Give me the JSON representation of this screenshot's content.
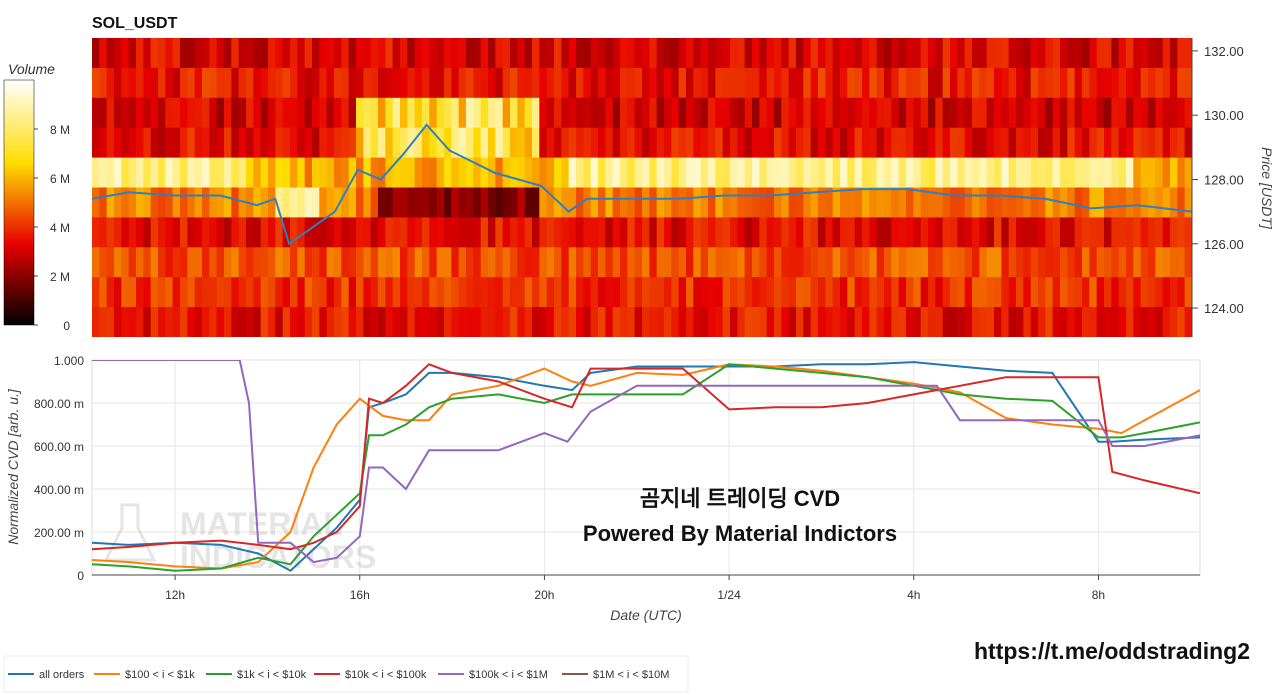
{
  "title": "SOL_USDT",
  "colorbar": {
    "label": "Volume",
    "ticks": [
      "0",
      "2 M",
      "4 M",
      "6 M",
      "8 M"
    ],
    "tick_values": [
      0,
      2,
      4,
      6,
      8
    ],
    "max": 10
  },
  "heatmap": {
    "price_axis_label": "Price [USDT]",
    "price_ticks": [
      "124.00",
      "126.00",
      "128.00",
      "130.00",
      "132.00"
    ],
    "price_tick_values": [
      124,
      126,
      128,
      130,
      132
    ],
    "price_range": [
      123.1,
      132.4
    ]
  },
  "cvd": {
    "y_label": "Normalized CVD [arb. u.]",
    "y_ticks": [
      "0",
      "200.00 m",
      "400.00 m",
      "600.00 m",
      "800.00 m",
      "1.000"
    ],
    "y_tick_values": [
      0,
      0.2,
      0.4,
      0.6,
      0.8,
      1.0
    ],
    "x_label": "Date (UTC)",
    "x_ticks": [
      "12h",
      "16h",
      "20h",
      "1/24",
      "4h",
      "8h"
    ],
    "x_tick_values": [
      12,
      16,
      20,
      24,
      28,
      32
    ],
    "x_range": [
      10.2,
      34.2
    ],
    "watermark": [
      "MATERIAL",
      "INDICATORS"
    ]
  },
  "overlay": {
    "line1": "곰지네 트레이딩 CVD",
    "line2": "Powered By Material Indictors"
  },
  "link": "https://t.me/oddstrading2",
  "legend": [
    {
      "name": "all orders",
      "color": "#1f77b4"
    },
    {
      "name": "$100 < i < $1k",
      "color": "#ff7f0e"
    },
    {
      "name": "$1k < i < $10k",
      "color": "#2ca02c"
    },
    {
      "name": "$10k < i < $100k",
      "color": "#d62728"
    },
    {
      "name": "$100k < i < $1M",
      "color": "#9467bd"
    },
    {
      "name": "$1M < i < $10M",
      "color": "#8c564b"
    }
  ],
  "chart_data": [
    {
      "type": "heatmap",
      "title": "SOL_USDT",
      "y_label": "Price [USDT]",
      "price_line": {
        "x": [
          10.2,
          11,
          12,
          13,
          13.8,
          14.2,
          14.5,
          15,
          15.5,
          16,
          16.5,
          17,
          17.5,
          18,
          19,
          20,
          20.6,
          21,
          22,
          23,
          24,
          25,
          26,
          27,
          28,
          29,
          30,
          31,
          32,
          33,
          34.2
        ],
        "y": [
          127.4,
          127.6,
          127.5,
          127.5,
          127.2,
          127.4,
          126.0,
          126.5,
          127.0,
          128.3,
          128.0,
          128.8,
          129.7,
          128.9,
          128.2,
          127.8,
          127.0,
          127.4,
          127.4,
          127.4,
          127.5,
          127.5,
          127.6,
          127.7,
          127.7,
          127.5,
          127.5,
          127.4,
          127.1,
          127.2,
          127.0
        ]
      }
    },
    {
      "type": "line",
      "title": "",
      "xlabel": "Date (UTC)",
      "ylabel": "Normalized CVD [arb. u.]",
      "ylim": [
        0,
        1.0
      ],
      "series": [
        {
          "name": "all orders",
          "color": "#1f77b4",
          "x": [
            10.2,
            11,
            12,
            13,
            13.8,
            14.5,
            15,
            15.5,
            16,
            16.2,
            16.5,
            17,
            17.5,
            18,
            19,
            20,
            20.6,
            21,
            22,
            23,
            24,
            25,
            26,
            27,
            28,
            29,
            30,
            31,
            32,
            32.3,
            33,
            34.2
          ],
          "y": [
            0.15,
            0.14,
            0.15,
            0.14,
            0.1,
            0.02,
            0.12,
            0.22,
            0.35,
            0.78,
            0.8,
            0.84,
            0.94,
            0.94,
            0.92,
            0.88,
            0.86,
            0.94,
            0.97,
            0.97,
            0.97,
            0.97,
            0.98,
            0.98,
            0.99,
            0.97,
            0.95,
            0.94,
            0.62,
            0.62,
            0.63,
            0.64
          ]
        },
        {
          "name": "$100 < i < $1k",
          "color": "#ff7f0e",
          "x": [
            10.2,
            11,
            12,
            13,
            13.8,
            14.5,
            15,
            15.5,
            16,
            16.5,
            17,
            17.5,
            18,
            19,
            20,
            20.6,
            21,
            22,
            23,
            24,
            25,
            26,
            27,
            28,
            29,
            30,
            31,
            32,
            32.5,
            33,
            34.2
          ],
          "y": [
            0.07,
            0.06,
            0.04,
            0.03,
            0.06,
            0.2,
            0.5,
            0.7,
            0.82,
            0.74,
            0.72,
            0.72,
            0.84,
            0.88,
            0.96,
            0.9,
            0.88,
            0.94,
            0.93,
            0.98,
            0.97,
            0.95,
            0.92,
            0.89,
            0.85,
            0.73,
            0.7,
            0.68,
            0.66,
            0.72,
            0.86
          ]
        },
        {
          "name": "$1k < i < $10k",
          "color": "#2ca02c",
          "x": [
            10.2,
            11,
            12,
            13,
            13.8,
            14.5,
            15,
            15.5,
            16,
            16.2,
            16.5,
            17,
            17.5,
            18,
            19,
            20,
            20.6,
            21,
            22,
            23,
            24,
            25,
            26,
            27,
            28,
            29,
            30,
            31,
            32,
            32.5,
            33,
            34.2
          ],
          "y": [
            0.05,
            0.04,
            0.02,
            0.03,
            0.08,
            0.05,
            0.18,
            0.28,
            0.38,
            0.65,
            0.65,
            0.7,
            0.78,
            0.82,
            0.84,
            0.8,
            0.84,
            0.84,
            0.84,
            0.84,
            0.98,
            0.96,
            0.94,
            0.92,
            0.88,
            0.84,
            0.82,
            0.81,
            0.64,
            0.64,
            0.66,
            0.71
          ]
        },
        {
          "name": "$10k < i < $100k",
          "color": "#d62728",
          "x": [
            10.2,
            11,
            12,
            13,
            13.8,
            14.5,
            15,
            15.5,
            16,
            16.2,
            16.5,
            17,
            17.5,
            18,
            19,
            20,
            20.6,
            21,
            22,
            23,
            24,
            25,
            26,
            27,
            28,
            29,
            30,
            31,
            32,
            32.3,
            33,
            34.2
          ],
          "y": [
            0.12,
            0.13,
            0.15,
            0.16,
            0.14,
            0.12,
            0.15,
            0.2,
            0.32,
            0.82,
            0.8,
            0.88,
            0.98,
            0.94,
            0.9,
            0.82,
            0.78,
            0.96,
            0.96,
            0.96,
            0.77,
            0.78,
            0.78,
            0.8,
            0.84,
            0.88,
            0.92,
            0.92,
            0.92,
            0.48,
            0.44,
            0.38
          ]
        },
        {
          "name": "$100k < i < $1M",
          "color": "#9467bd",
          "x": [
            10.2,
            11,
            12,
            13,
            13.4,
            13.6,
            13.8,
            14.5,
            15,
            15.5,
            16,
            16.2,
            16.5,
            17,
            17.5,
            18,
            19,
            20,
            20.5,
            21,
            22,
            23,
            24,
            25,
            26,
            27,
            28,
            28.5,
            29,
            30,
            31,
            32,
            32.3,
            33,
            34.2
          ],
          "y": [
            1.0,
            1.0,
            1.0,
            1.0,
            1.0,
            0.8,
            0.15,
            0.15,
            0.06,
            0.08,
            0.18,
            0.5,
            0.5,
            0.4,
            0.58,
            0.58,
            0.58,
            0.66,
            0.62,
            0.76,
            0.88,
            0.88,
            0.88,
            0.88,
            0.88,
            0.88,
            0.88,
            0.88,
            0.72,
            0.72,
            0.72,
            0.72,
            0.6,
            0.6,
            0.65
          ]
        },
        {
          "name": "$1M < i < $10M",
          "color": "#8c564b",
          "x": [],
          "y": []
        }
      ]
    }
  ]
}
